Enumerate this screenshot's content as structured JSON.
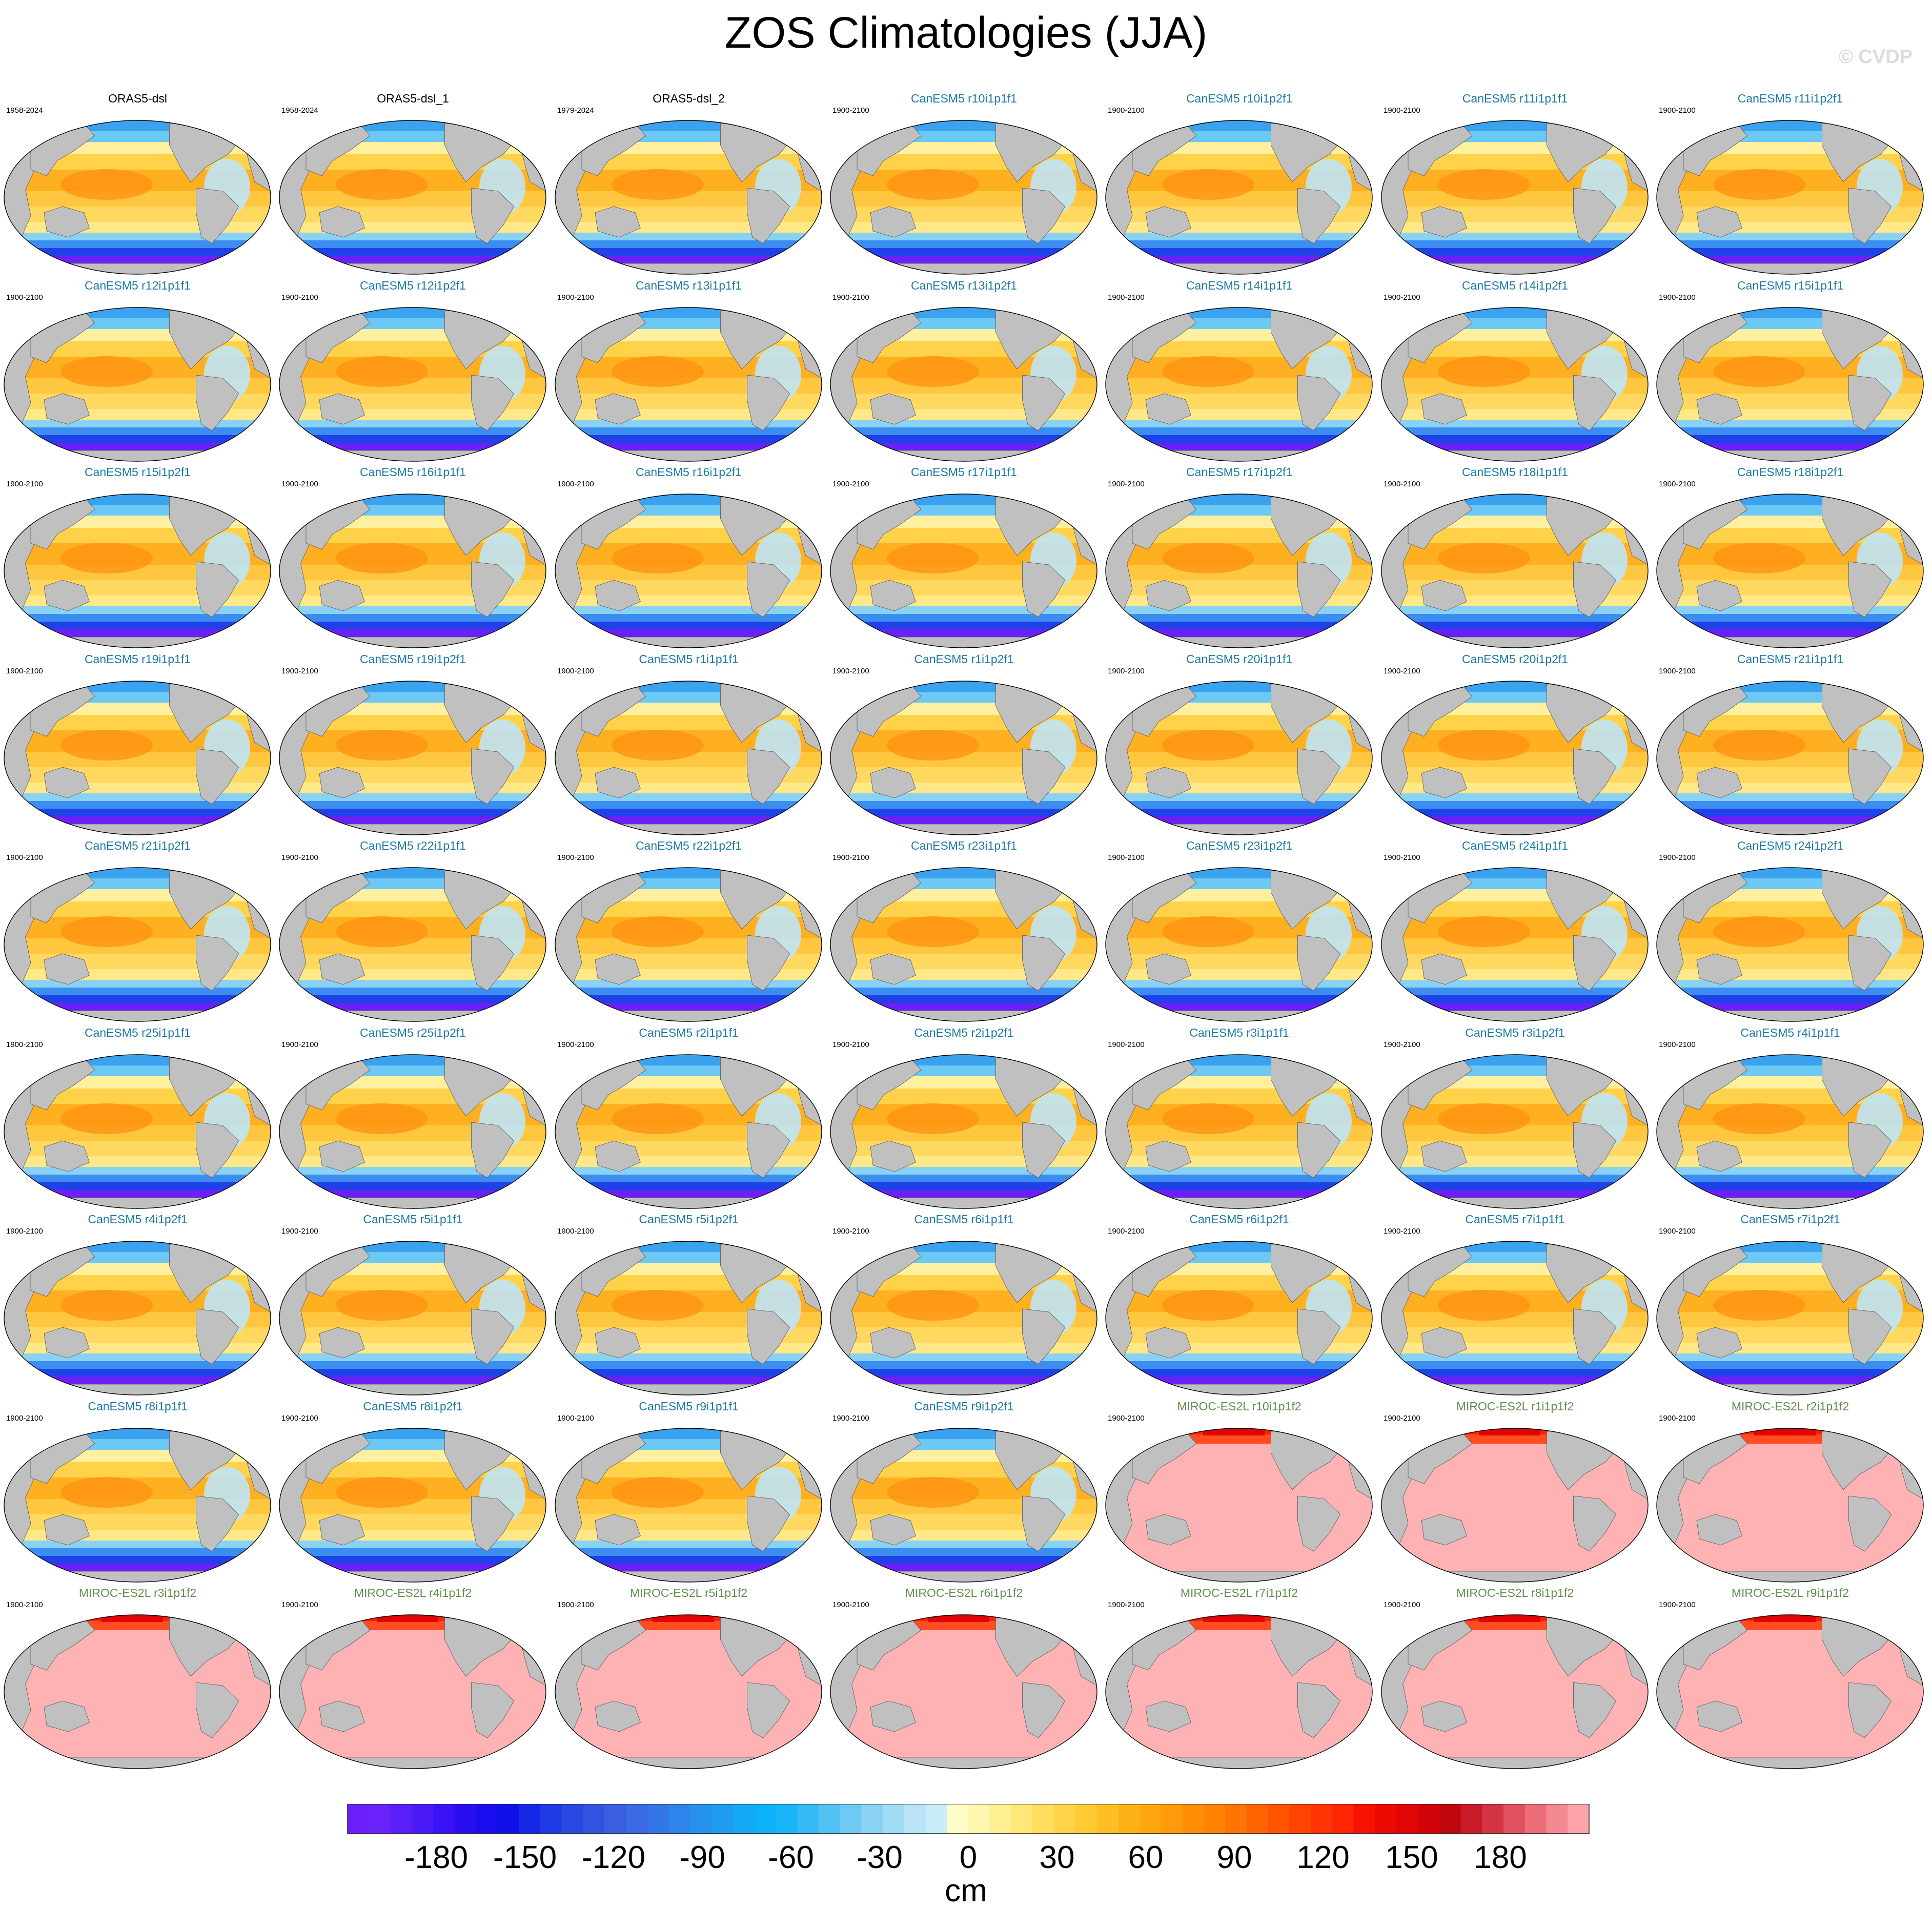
{
  "title": "ZOS Climatologies (JJA)",
  "copyright": "© CVDP",
  "colors": {
    "land": "#c0c0c0",
    "obs_title": "#000000",
    "canesm_title": "#1a7aa8",
    "miroc_title": "#5f8f4f"
  },
  "panels": [
    {
      "label": "ORAS5-dsl",
      "years": "1958-2024",
      "style": "obs"
    },
    {
      "label": "ORAS5-dsl_1",
      "years": "1958-2024",
      "style": "obs"
    },
    {
      "label": "ORAS5-dsl_2",
      "years": "1979-2024",
      "style": "obs"
    },
    {
      "label": "CanESM5 r10i1p1f1",
      "years": "1900-2100",
      "style": "canesm"
    },
    {
      "label": "CanESM5 r10i1p2f1",
      "years": "1900-2100",
      "style": "canesm"
    },
    {
      "label": "CanESM5 r11i1p1f1",
      "years": "1900-2100",
      "style": "canesm"
    },
    {
      "label": "CanESM5 r11i1p2f1",
      "years": "1900-2100",
      "style": "canesm"
    },
    {
      "label": "CanESM5 r12i1p1f1",
      "years": "1900-2100",
      "style": "canesm"
    },
    {
      "label": "CanESM5 r12i1p2f1",
      "years": "1900-2100",
      "style": "canesm"
    },
    {
      "label": "CanESM5 r13i1p1f1",
      "years": "1900-2100",
      "style": "canesm"
    },
    {
      "label": "CanESM5 r13i1p2f1",
      "years": "1900-2100",
      "style": "canesm"
    },
    {
      "label": "CanESM5 r14i1p1f1",
      "years": "1900-2100",
      "style": "canesm"
    },
    {
      "label": "CanESM5 r14i1p2f1",
      "years": "1900-2100",
      "style": "canesm"
    },
    {
      "label": "CanESM5 r15i1p1f1",
      "years": "1900-2100",
      "style": "canesm"
    },
    {
      "label": "CanESM5 r15i1p2f1",
      "years": "1900-2100",
      "style": "canesm"
    },
    {
      "label": "CanESM5 r16i1p1f1",
      "years": "1900-2100",
      "style": "canesm"
    },
    {
      "label": "CanESM5 r16i1p2f1",
      "years": "1900-2100",
      "style": "canesm"
    },
    {
      "label": "CanESM5 r17i1p1f1",
      "years": "1900-2100",
      "style": "canesm"
    },
    {
      "label": "CanESM5 r17i1p2f1",
      "years": "1900-2100",
      "style": "canesm"
    },
    {
      "label": "CanESM5 r18i1p1f1",
      "years": "1900-2100",
      "style": "canesm"
    },
    {
      "label": "CanESM5 r18i1p2f1",
      "years": "1900-2100",
      "style": "canesm"
    },
    {
      "label": "CanESM5 r19i1p1f1",
      "years": "1900-2100",
      "style": "canesm"
    },
    {
      "label": "CanESM5 r19i1p2f1",
      "years": "1900-2100",
      "style": "canesm"
    },
    {
      "label": "CanESM5 r1i1p1f1",
      "years": "1900-2100",
      "style": "canesm"
    },
    {
      "label": "CanESM5 r1i1p2f1",
      "years": "1900-2100",
      "style": "canesm"
    },
    {
      "label": "CanESM5 r20i1p1f1",
      "years": "1900-2100",
      "style": "canesm"
    },
    {
      "label": "CanESM5 r20i1p2f1",
      "years": "1900-2100",
      "style": "canesm"
    },
    {
      "label": "CanESM5 r21i1p1f1",
      "years": "1900-2100",
      "style": "canesm"
    },
    {
      "label": "CanESM5 r21i1p2f1",
      "years": "1900-2100",
      "style": "canesm"
    },
    {
      "label": "CanESM5 r22i1p1f1",
      "years": "1900-2100",
      "style": "canesm"
    },
    {
      "label": "CanESM5 r22i1p2f1",
      "years": "1900-2100",
      "style": "canesm"
    },
    {
      "label": "CanESM5 r23i1p1f1",
      "years": "1900-2100",
      "style": "canesm"
    },
    {
      "label": "CanESM5 r23i1p2f1",
      "years": "1900-2100",
      "style": "canesm"
    },
    {
      "label": "CanESM5 r24i1p1f1",
      "years": "1900-2100",
      "style": "canesm"
    },
    {
      "label": "CanESM5 r24i1p2f1",
      "years": "1900-2100",
      "style": "canesm"
    },
    {
      "label": "CanESM5 r25i1p1f1",
      "years": "1900-2100",
      "style": "canesm"
    },
    {
      "label": "CanESM5 r25i1p2f1",
      "years": "1900-2100",
      "style": "canesm"
    },
    {
      "label": "CanESM5 r2i1p1f1",
      "years": "1900-2100",
      "style": "canesm"
    },
    {
      "label": "CanESM5 r2i1p2f1",
      "years": "1900-2100",
      "style": "canesm"
    },
    {
      "label": "CanESM5 r3i1p1f1",
      "years": "1900-2100",
      "style": "canesm"
    },
    {
      "label": "CanESM5 r3i1p2f1",
      "years": "1900-2100",
      "style": "canesm"
    },
    {
      "label": "CanESM5 r4i1p1f1",
      "years": "1900-2100",
      "style": "canesm"
    },
    {
      "label": "CanESM5 r4i1p2f1",
      "years": "1900-2100",
      "style": "canesm"
    },
    {
      "label": "CanESM5 r5i1p1f1",
      "years": "1900-2100",
      "style": "canesm"
    },
    {
      "label": "CanESM5 r5i1p2f1",
      "years": "1900-2100",
      "style": "canesm"
    },
    {
      "label": "CanESM5 r6i1p1f1",
      "years": "1900-2100",
      "style": "canesm"
    },
    {
      "label": "CanESM5 r6i1p2f1",
      "years": "1900-2100",
      "style": "canesm"
    },
    {
      "label": "CanESM5 r7i1p1f1",
      "years": "1900-2100",
      "style": "canesm"
    },
    {
      "label": "CanESM5 r7i1p2f1",
      "years": "1900-2100",
      "style": "canesm"
    },
    {
      "label": "CanESM5 r8i1p1f1",
      "years": "1900-2100",
      "style": "canesm"
    },
    {
      "label": "CanESM5 r8i1p2f1",
      "years": "1900-2100",
      "style": "canesm"
    },
    {
      "label": "CanESM5 r9i1p1f1",
      "years": "1900-2100",
      "style": "canesm"
    },
    {
      "label": "CanESM5 r9i1p2f1",
      "years": "1900-2100",
      "style": "canesm"
    },
    {
      "label": "MIROC-ES2L r10i1p1f2",
      "years": "1900-2100",
      "style": "miroc"
    },
    {
      "label": "MIROC-ES2L r1i1p1f2",
      "years": "1900-2100",
      "style": "miroc"
    },
    {
      "label": "MIROC-ES2L r2i1p1f2",
      "years": "1900-2100",
      "style": "miroc"
    },
    {
      "label": "MIROC-ES2L r3i1p1f2",
      "years": "1900-2100",
      "style": "miroc"
    },
    {
      "label": "MIROC-ES2L r4i1p1f2",
      "years": "1900-2100",
      "style": "miroc"
    },
    {
      "label": "MIROC-ES2L r5i1p1f2",
      "years": "1900-2100",
      "style": "miroc"
    },
    {
      "label": "MIROC-ES2L r6i1p1f2",
      "years": "1900-2100",
      "style": "miroc"
    },
    {
      "label": "MIROC-ES2L r7i1p1f2",
      "years": "1900-2100",
      "style": "miroc"
    },
    {
      "label": "MIROC-ES2L r8i1p1f2",
      "years": "1900-2100",
      "style": "miroc"
    },
    {
      "label": "MIROC-ES2L r9i1p1f2",
      "years": "1900-2100",
      "style": "miroc"
    }
  ],
  "colorbar": {
    "unit": "cm",
    "ticks": [
      "-180",
      "-150",
      "-120",
      "-90",
      "-60",
      "-30",
      "0",
      "30",
      "60",
      "90",
      "120",
      "150",
      "180"
    ],
    "tick_values": [
      -180,
      -150,
      -120,
      -90,
      -60,
      -30,
      0,
      30,
      60,
      90,
      120,
      150,
      180
    ],
    "range": [
      -210,
      210
    ],
    "colors": [
      "#6b1dfa",
      "#6a22fb",
      "#5a1ef9",
      "#4a1af7",
      "#3a12f5",
      "#2a0ef2",
      "#1a0cef",
      "#1010e8",
      "#1428e6",
      "#1e3ae4",
      "#2848e2",
      "#3054e0",
      "#3a5ee0",
      "#3a6ae4",
      "#3476e6",
      "#2e84ea",
      "#2690ee",
      "#1e9cf2",
      "#14a8f6",
      "#0cb2f8",
      "#18b6f8",
      "#34baf6",
      "#52c2f4",
      "#6ecaf2",
      "#8ad2f2",
      "#a2dcf4",
      "#b8e4f6",
      "#c8ecf8",
      "#fffcc8",
      "#fff7b0",
      "#fff094",
      "#ffe878",
      "#ffde5e",
      "#ffd448",
      "#ffca34",
      "#ffbe24",
      "#ffb218",
      "#ffa610",
      "#ff9a0a",
      "#ff8e06",
      "#ff8204",
      "#ff7402",
      "#ff6402",
      "#ff5402",
      "#ff4402",
      "#ff3402",
      "#ff2402",
      "#f81202",
      "#ec0a02",
      "#e00606",
      "#d00408",
      "#c0060c",
      "#c81a28",
      "#d43444",
      "#e0505e",
      "#ec6c78",
      "#f48890",
      "#fca4a8"
    ]
  }
}
